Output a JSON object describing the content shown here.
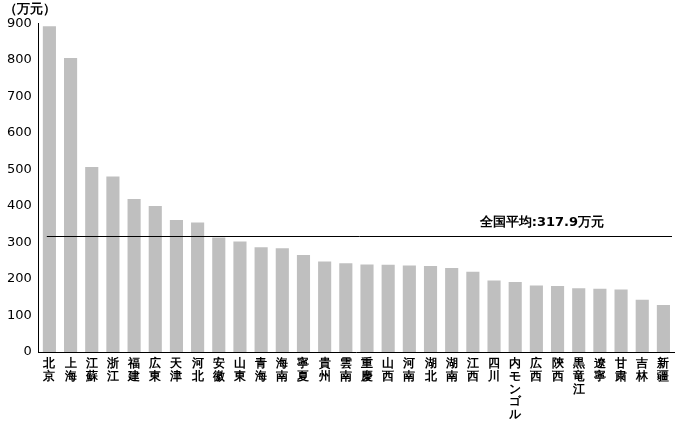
{
  "chart_data": {
    "type": "bar",
    "y_label": "（万元）",
    "categories": [
      "北京",
      "上海",
      "江蘇",
      "浙江",
      "福建",
      "広東",
      "天津",
      "河北",
      "安徽",
      "山東",
      "青海",
      "海南",
      "寧夏",
      "貴州",
      "雲南",
      "重慶",
      "山西",
      "河南",
      "湖北",
      "湖南",
      "江西",
      "四川",
      "内モンゴル",
      "広西",
      "陝西",
      "黒竜江",
      "遼寧",
      "甘粛",
      "吉林",
      "新疆"
    ],
    "values": [
      893,
      806,
      507,
      481,
      419,
      400,
      362,
      355,
      314,
      303,
      287,
      284,
      266,
      248,
      243,
      240,
      239,
      237,
      236,
      230,
      220,
      196,
      192,
      182,
      181,
      175,
      173,
      171,
      143,
      129
    ],
    "color": "#bfbfbf",
    "ylim": [
      0,
      900
    ],
    "yticks": [
      0,
      100,
      200,
      300,
      400,
      500,
      600,
      700,
      800,
      900
    ],
    "grid": false,
    "annotations": [
      {
        "type": "hline",
        "value": 317.9,
        "label": "全国平均:317.9万元"
      }
    ]
  }
}
